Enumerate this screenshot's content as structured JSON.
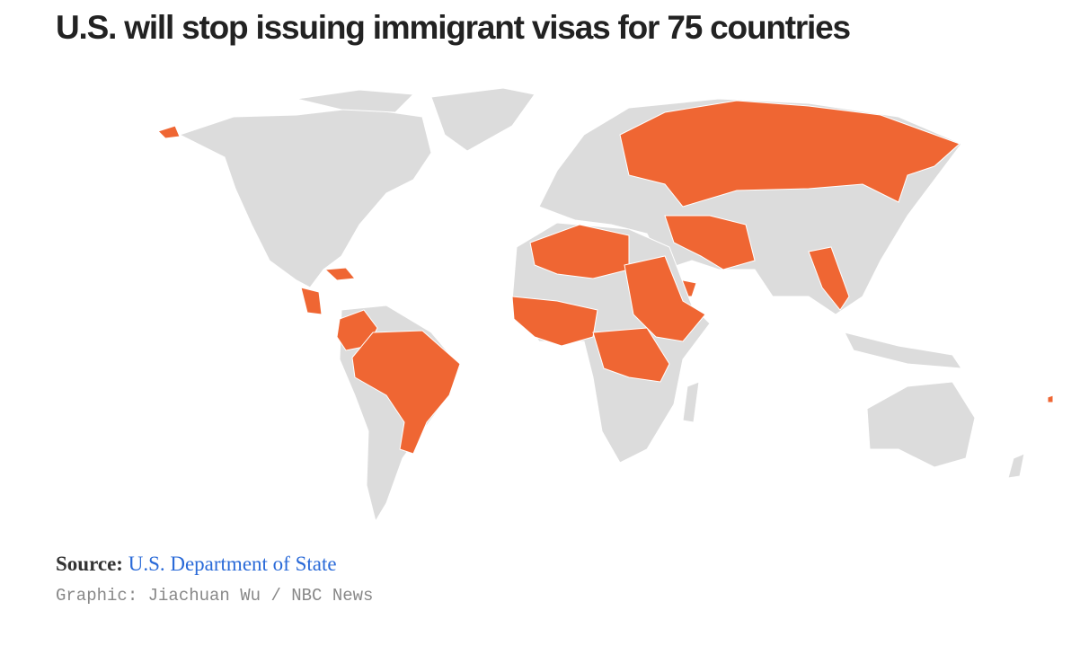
{
  "header": {
    "title": "U.S. will stop issuing immigrant visas for 75 countries"
  },
  "footer": {
    "source_label": "Source:",
    "source": "U.S. Department of State",
    "credit": "Graphic: Jiachuan Wu / NBC News"
  }
}
